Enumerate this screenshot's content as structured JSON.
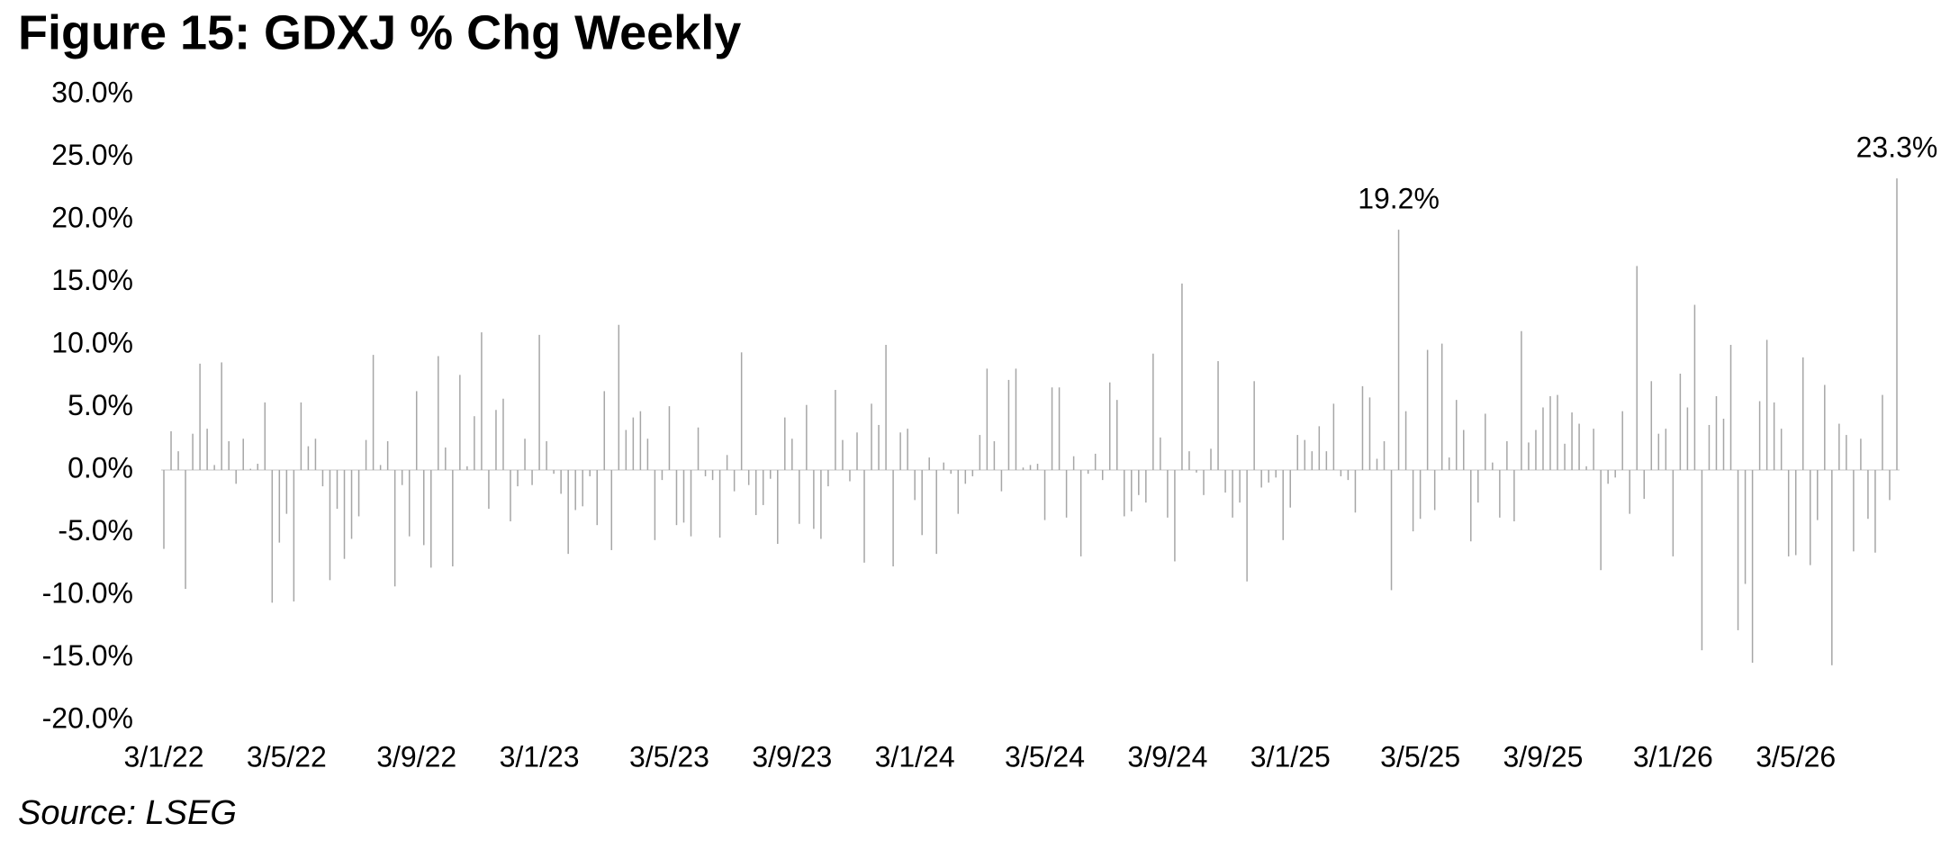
{
  "chart_data": {
    "type": "bar",
    "title": "Figure 15: GDXJ % Chg Weekly",
    "source": "Source: LSEG",
    "color": "#a6a6a6",
    "categories": [
      "3/1/22",
      null,
      null,
      null,
      null,
      null,
      null,
      null,
      null,
      null,
      null,
      null,
      null,
      null,
      null,
      null,
      null,
      "3/5/22",
      null,
      null,
      null,
      null,
      null,
      null,
      null,
      null,
      null,
      null,
      null,
      null,
      null,
      null,
      null,
      null,
      null,
      "3/9/22",
      null,
      null,
      null,
      null,
      null,
      null,
      null,
      null,
      null,
      null,
      null,
      null,
      null,
      null,
      null,
      null,
      "3/1/23",
      null,
      null,
      null,
      null,
      null,
      null,
      null,
      null,
      null,
      null,
      null,
      null,
      null,
      null,
      null,
      null,
      null,
      "3/5/23",
      null,
      null,
      null,
      null,
      null,
      null,
      null,
      null,
      null,
      null,
      null,
      null,
      null,
      null,
      null,
      null,
      "3/9/23",
      null,
      null,
      null,
      null,
      null,
      null,
      null,
      null,
      null,
      null,
      null,
      null,
      null,
      null,
      null,
      null,
      "3/1/24",
      null,
      null,
      null,
      null,
      null,
      null,
      null,
      null,
      null,
      null,
      null,
      null,
      null,
      null,
      null,
      null,
      null,
      "3/5/24",
      null,
      null,
      null,
      null,
      null,
      null,
      null,
      null,
      null,
      null,
      null,
      null,
      null,
      null,
      null,
      null,
      "3/9/24",
      null,
      null,
      null,
      null,
      null,
      null,
      null,
      null,
      null,
      null,
      null,
      null,
      null,
      null,
      null,
      null,
      "3/1/25",
      null,
      null,
      null,
      null,
      null,
      null,
      null,
      null,
      null,
      null,
      null,
      null,
      null,
      null,
      null,
      null,
      null,
      "3/5/25",
      null,
      null,
      null,
      null,
      null,
      null,
      null,
      null,
      null,
      null,
      null,
      null,
      null,
      null,
      null,
      null,
      "3/9/25",
      null,
      null,
      null,
      null,
      null,
      null,
      null,
      null,
      null,
      null,
      null,
      null,
      null,
      null,
      null,
      null,
      null,
      "3/1/26",
      null,
      null,
      null,
      null,
      null,
      null,
      null,
      null,
      null,
      null,
      null,
      null,
      null,
      null,
      null,
      null,
      "3/5/26",
      null,
      null,
      null,
      null,
      null,
      null,
      null,
      null,
      null,
      null,
      null,
      null,
      null,
      null
    ],
    "values": [
      -6.3,
      3.1,
      1.5,
      -9.5,
      2.9,
      8.5,
      3.3,
      0.4,
      8.6,
      2.3,
      -1.1,
      2.5,
      0.1,
      0.5,
      5.4,
      -10.6,
      -5.8,
      -3.5,
      -10.5,
      5.4,
      1.9,
      2.5,
      -1.3,
      -8.8,
      -3.1,
      -7.1,
      -5.5,
      -3.7,
      2.4,
      9.2,
      0.4,
      2.3,
      -9.3,
      -1.2,
      -5.3,
      6.3,
      -6.0,
      -7.8,
      9.1,
      1.8,
      -7.7,
      7.6,
      0.3,
      4.3,
      11.0,
      -3.1,
      4.8,
      5.7,
      -4.1,
      -1.3,
      2.5,
      -1.2,
      10.8,
      2.3,
      -0.3,
      -1.9,
      -6.7,
      -3.2,
      -2.9,
      -0.5,
      -4.4,
      6.3,
      -6.4,
      11.6,
      3.2,
      4.2,
      4.7,
      2.5,
      -5.6,
      -0.8,
      5.1,
      -4.4,
      -4.2,
      -5.3,
      3.4,
      -0.5,
      -0.8,
      -5.4,
      1.2,
      -1.7,
      9.4,
      -1.2,
      -3.6,
      -2.8,
      -0.7,
      -5.9,
      4.2,
      2.5,
      -4.3,
      5.2,
      -4.7,
      -5.5,
      -1.3,
      6.4,
      2.4,
      -0.9,
      3.0,
      -7.4,
      5.3,
      3.6,
      10.0,
      -7.7,
      3.0,
      3.3,
      -2.4,
      -5.2,
      1.0,
      -6.7,
      0.6,
      -0.3,
      -3.5,
      -1.1,
      -0.5,
      2.8,
      8.1,
      2.3,
      -1.7,
      7.2,
      8.1,
      0.2,
      0.4,
      0.5,
      -4.0,
      6.6,
      6.6,
      -3.8,
      1.1,
      -6.9,
      -0.3,
      1.3,
      -0.8,
      7.0,
      5.6,
      -3.7,
      -3.3,
      -2.0,
      -2.6,
      9.3,
      2.6,
      -3.8,
      -7.3,
      14.9,
      1.5,
      -0.2,
      -2.0,
      1.7,
      8.7,
      -1.8,
      -3.8,
      -2.6,
      -8.9,
      7.1,
      -1.4,
      -1.0,
      -0.6,
      -5.6,
      -3.0,
      2.8,
      2.4,
      1.5,
      3.5,
      1.5,
      5.3,
      -0.5,
      -0.8,
      -3.4,
      6.7,
      5.8,
      0.9,
      2.3,
      -9.6,
      19.2,
      4.7,
      -4.9,
      -3.9,
      9.6,
      -3.2,
      10.1,
      1.0,
      5.6,
      3.2,
      -5.7,
      -2.6,
      4.5,
      0.6,
      -3.8,
      2.3,
      -4.1,
      11.1,
      2.2,
      3.2,
      5.0,
      5.9,
      6.0,
      2.1,
      4.6,
      3.7,
      0.3,
      3.3,
      -8.0,
      -1.1,
      -0.6,
      4.7,
      -3.5,
      16.3,
      -2.3,
      7.1,
      2.9,
      3.3,
      -6.9,
      7.7,
      5.0,
      13.2,
      -14.4,
      3.6,
      5.9,
      4.1,
      10.0,
      -12.8,
      -9.1,
      -15.4,
      5.5,
      10.4,
      5.4,
      3.3,
      -6.9,
      -6.8,
      9.0,
      -7.6,
      -4.0,
      6.8,
      -15.6,
      3.7,
      2.8,
      -6.5,
      2.5,
      -3.9,
      -6.6,
      6.0,
      -2.4,
      23.3
    ],
    "value_labels": [
      null,
      null,
      null,
      null,
      null,
      null,
      null,
      null,
      null,
      null,
      null,
      null,
      null,
      null,
      null,
      null,
      null,
      null,
      null,
      null,
      null,
      null,
      null,
      null,
      null,
      null,
      null,
      null,
      null,
      null,
      null,
      null,
      null,
      null,
      null,
      null,
      null,
      null,
      null,
      null,
      null,
      null,
      null,
      null,
      null,
      null,
      null,
      null,
      null,
      null,
      null,
      null,
      null,
      null,
      null,
      null,
      null,
      null,
      null,
      null,
      null,
      null,
      null,
      null,
      null,
      null,
      null,
      null,
      null,
      null,
      null,
      null,
      null,
      null,
      null,
      null,
      null,
      null,
      null,
      null,
      null,
      null,
      null,
      null,
      null,
      null,
      null,
      null,
      null,
      null,
      null,
      null,
      null,
      null,
      null,
      null,
      null,
      null,
      null,
      null,
      null,
      null,
      null,
      null,
      null,
      null,
      null,
      null,
      null,
      null,
      null,
      null,
      null,
      null,
      null,
      null,
      null,
      null,
      null,
      null,
      null,
      null,
      null,
      null,
      null,
      null,
      null,
      null,
      null,
      null,
      null,
      null,
      null,
      null,
      null,
      null,
      null,
      null,
      null,
      null,
      null,
      null,
      null,
      null,
      null,
      null,
      null,
      null,
      null,
      null,
      null,
      null,
      null,
      null,
      null,
      null,
      null,
      null,
      null,
      null,
      null,
      null,
      null,
      null,
      null,
      null,
      null,
      null,
      null,
      null,
      null,
      "19.2%",
      null,
      null,
      null,
      null,
      null,
      null,
      null,
      null,
      null,
      null,
      null,
      null,
      null,
      null,
      null,
      null,
      null,
      null,
      null,
      null,
      null,
      null,
      null,
      null,
      null,
      null,
      null,
      null,
      null,
      null,
      null,
      null,
      null,
      null,
      null,
      null,
      null,
      null,
      null,
      null,
      null,
      null,
      null,
      null,
      null,
      null,
      null,
      null,
      null,
      null,
      null,
      null,
      null,
      null,
      null,
      null,
      null,
      null,
      null,
      null,
      null,
      null,
      null,
      null,
      null,
      null,
      null,
      null,
      "23.3%"
    ],
    "ylim": [
      -20,
      30
    ],
    "yticks": [
      {
        "value": -20,
        "label": "-20.0%"
      },
      {
        "value": -15,
        "label": "-15.0%"
      },
      {
        "value": -10,
        "label": "-10.0%"
      },
      {
        "value": -5,
        "label": "-5.0%"
      },
      {
        "value": 0,
        "label": "0.0%"
      },
      {
        "value": 5,
        "label": "5.0%"
      },
      {
        "value": 10,
        "label": "10.0%"
      },
      {
        "value": 15,
        "label": "15.0%"
      },
      {
        "value": 20,
        "label": "20.0%"
      },
      {
        "value": 25,
        "label": "25.0%"
      },
      {
        "value": 30,
        "label": "30.0%"
      }
    ],
    "grid": false
  }
}
